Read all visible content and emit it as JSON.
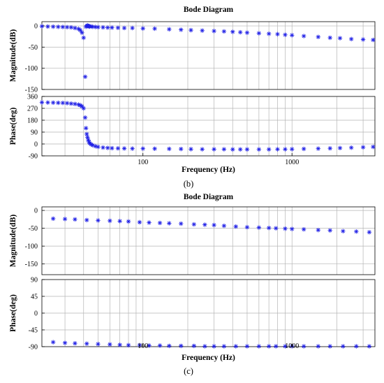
{
  "figure": {
    "panels": [
      {
        "caption": "(b)"
      },
      {
        "caption": "(c)"
      }
    ]
  },
  "chart_data": [
    {
      "type": "scatter",
      "title": "Bode Diagram",
      "caption": "(b)",
      "xlabel": "Frequency  (Hz)",
      "xscale": "log",
      "xlim": [
        21,
        3600
      ],
      "xticks": [
        100,
        1000
      ],
      "xtick_labels": [
        "100",
        "1000"
      ],
      "grid": true,
      "marker": "*",
      "marker_color": "#1f1fe6",
      "subplots": [
        {
          "ylabel": "Magnitude(dB)",
          "ylim": [
            -150,
            10
          ],
          "yticks": [
            0,
            -50,
            -100,
            -150
          ],
          "ytick_labels": [
            "0",
            "-50",
            "-100",
            "-150"
          ],
          "x": [
            21,
            23,
            25,
            27,
            29,
            31,
            33,
            35,
            37,
            38,
            39,
            40,
            41,
            41.5,
            42,
            42.5,
            43,
            43.5,
            44,
            45,
            46,
            48,
            50,
            54,
            58,
            62,
            68,
            75,
            85,
            100,
            120,
            150,
            180,
            210,
            250,
            300,
            350,
            400,
            450,
            500,
            600,
            700,
            800,
            900,
            1000,
            1200,
            1500,
            1800,
            2100,
            2500,
            3000,
            3500
          ],
          "values": [
            -1,
            -1.5,
            -1.8,
            -2.2,
            -2.5,
            -3,
            -3.5,
            -5,
            -7,
            -10,
            -16,
            -28,
            -120,
            -2,
            0,
            1,
            0,
            -1,
            -1.5,
            -1.5,
            -2,
            -2.5,
            -3,
            -3.5,
            -4,
            -4,
            -4.5,
            -5,
            -5,
            -6,
            -6.5,
            -8,
            -9,
            -10,
            -11,
            -12,
            -13,
            -14,
            -15,
            -16,
            -17.5,
            -18.5,
            -19.5,
            -21,
            -22,
            -24,
            -26,
            -28,
            -29,
            -31,
            -32,
            -33
          ]
        },
        {
          "ylabel": "Phase(deg)",
          "ylim": [
            -90,
            360
          ],
          "yticks": [
            360,
            270,
            180,
            90,
            0,
            -90
          ],
          "ytick_labels": [
            "360",
            "270",
            "180",
            "90",
            "0",
            "-90"
          ],
          "x": [
            21,
            23,
            25,
            27,
            29,
            31,
            33,
            35,
            37,
            38,
            39,
            40,
            41,
            41.5,
            42,
            42.5,
            43,
            43.5,
            44,
            45,
            46,
            48,
            50,
            54,
            58,
            62,
            68,
            75,
            85,
            100,
            120,
            150,
            180,
            210,
            250,
            300,
            350,
            400,
            450,
            500,
            600,
            700,
            800,
            900,
            1000,
            1200,
            1500,
            1800,
            2100,
            2500,
            3000,
            3500
          ],
          "values": [
            315,
            314,
            313,
            312,
            311,
            309,
            306,
            303,
            298,
            293,
            285,
            270,
            200,
            120,
            75,
            50,
            30,
            15,
            5,
            -3,
            -10,
            -17,
            -22,
            -27,
            -30,
            -32,
            -33,
            -34,
            -35,
            -35,
            -36,
            -37,
            -38,
            -39,
            -40,
            -40,
            -40,
            -41,
            -41,
            -41,
            -41,
            -41,
            -40,
            -40,
            -39,
            -37,
            -35,
            -33,
            -31,
            -28,
            -25,
            -22
          ]
        }
      ]
    },
    {
      "type": "scatter",
      "title": "Bode Diagram",
      "caption": "(c)",
      "xlabel": "Frequency  (Hz)",
      "xscale": "log",
      "xlim": [
        21,
        3600
      ],
      "xticks": [
        100,
        1000
      ],
      "xtick_labels": [
        "100",
        "1000"
      ],
      "grid": true,
      "marker": "*",
      "marker_color": "#1f1fe6",
      "subplots": [
        {
          "ylabel": "Magnitude(dB)",
          "ylim": [
            -180,
            10
          ],
          "yticks": [
            0,
            -50,
            -100,
            -150
          ],
          "ytick_labels": [
            "0",
            "-50",
            "-100",
            "-150"
          ],
          "x": [
            25,
            30,
            35,
            42,
            50,
            60,
            70,
            80,
            95,
            110,
            130,
            150,
            180,
            220,
            260,
            300,
            350,
            420,
            500,
            600,
            700,
            780,
            900,
            1000,
            1200,
            1500,
            1800,
            2200,
            2700,
            3300
          ],
          "values": [
            -23,
            -24,
            -25,
            -27,
            -28,
            -29,
            -30,
            -31,
            -33,
            -34,
            -35,
            -36,
            -37,
            -39,
            -40,
            -41,
            -43,
            -45,
            -47,
            -48,
            -49,
            -50,
            -51,
            -52,
            -53,
            -55,
            -56,
            -58,
            -59,
            -61
          ]
        },
        {
          "ylabel": "Phase(deg)",
          "ylim": [
            -90,
            90
          ],
          "yticks": [
            90,
            45,
            0,
            -45,
            -90
          ],
          "ytick_labels": [
            "90",
            "45",
            "0",
            "-45",
            "-90"
          ],
          "x": [
            25,
            30,
            35,
            42,
            50,
            60,
            70,
            80,
            95,
            110,
            130,
            150,
            180,
            220,
            260,
            300,
            350,
            420,
            500,
            600,
            700,
            780,
            900,
            1000,
            1200,
            1500,
            1800,
            2200,
            2700,
            3300
          ],
          "values": [
            -78,
            -80,
            -81,
            -82,
            -83,
            -84,
            -85,
            -86,
            -86,
            -87,
            -87,
            -88,
            -88,
            -88,
            -89,
            -89,
            -89,
            -89,
            -89,
            -89,
            -89,
            -89,
            -89,
            -89,
            -89,
            -89,
            -89,
            -89,
            -89,
            -89
          ]
        }
      ]
    }
  ]
}
